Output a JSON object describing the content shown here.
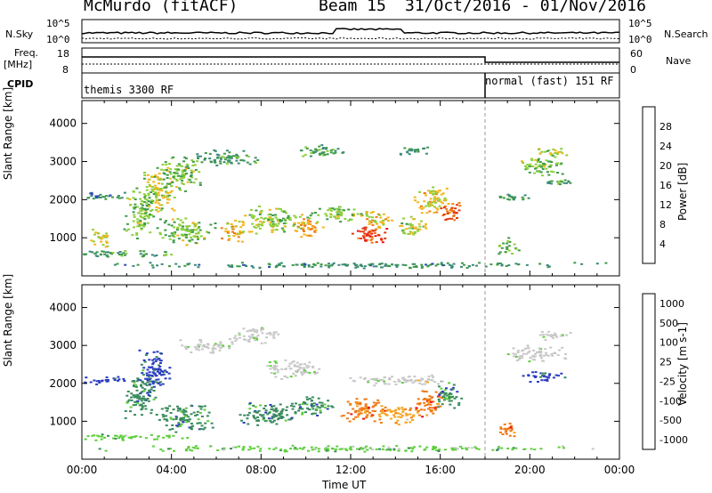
{
  "header": {
    "station": "McMurdo (fitACF)",
    "beam": "Beam 15",
    "date_range": "31/Oct/2016 - 01/Nov/2016"
  },
  "top_panels": {
    "nsky_label": "N.Sky",
    "nsearch_label": "N.Search",
    "ntick_top": "10^5",
    "ntick_bottom": "10^0",
    "freq_label": "Freq.",
    "freq_unit": "[MHz]",
    "freq_ticks": [
      "18",
      "8"
    ],
    "nave_label": "Nave",
    "nave_ticks": [
      "60",
      "0"
    ],
    "cpid_label": "CPID",
    "cpid_segments": [
      {
        "text": "themis 3300 RF",
        "start_hour": 0
      },
      {
        "text": "normal (fast) 151 RF",
        "start_hour": 18
      }
    ]
  },
  "colors": {
    "power": [
      "#1d1dff",
      "#2e4fb0",
      "#3c8a7a",
      "#3f9a4a",
      "#8ccf3a",
      "#f2b51c",
      "#f07a16",
      "#e33a10",
      "#ee1010"
    ],
    "velocity": [
      "#2a3cc0",
      "#3a8a5e",
      "#5ccf3a",
      "#c8c8c8",
      "#c8c8c8",
      "#f5a623",
      "#f07a16",
      "#ee1010"
    ]
  },
  "chart_data": [
    {
      "type": "heatmap",
      "name": "power",
      "ylabel": "Slant Range [km]",
      "yticks": [
        "1000",
        "2000",
        "3000",
        "4000"
      ],
      "ylim": [
        0,
        4600
      ],
      "xlim": [
        0,
        24
      ],
      "colorbar_label": "Power [dB]",
      "colorbar_ticks": [
        "4",
        "8",
        "12",
        "16",
        "20",
        "24",
        "28"
      ],
      "colorbar_range": [
        0,
        30
      ],
      "blobs": [
        {
          "t": 0.6,
          "r": 2100,
          "dt": 1.4,
          "dr": 120,
          "v": 7
        },
        {
          "t": 0.8,
          "r": 1000,
          "dt": 0.5,
          "dr": 300,
          "v": 14
        },
        {
          "t": 1.8,
          "r": 600,
          "dt": 3.0,
          "dr": 100,
          "v": 9
        },
        {
          "t": 2.6,
          "r": 1700,
          "dt": 0.8,
          "dr": 700,
          "v": 12
        },
        {
          "t": 3.4,
          "r": 2300,
          "dt": 0.8,
          "dr": 700,
          "v": 14
        },
        {
          "t": 4.4,
          "r": 2700,
          "dt": 1.0,
          "dr": 500,
          "v": 12
        },
        {
          "t": 4.6,
          "r": 1200,
          "dt": 1.4,
          "dr": 400,
          "v": 12
        },
        {
          "t": 6.8,
          "r": 1200,
          "dt": 0.8,
          "dr": 300,
          "v": 17
        },
        {
          "t": 6.4,
          "r": 3100,
          "dt": 1.6,
          "dr": 250,
          "v": 9
        },
        {
          "t": 8.6,
          "r": 1500,
          "dt": 1.4,
          "dr": 400,
          "v": 13
        },
        {
          "t": 10.0,
          "r": 1300,
          "dt": 0.8,
          "dr": 300,
          "v": 18
        },
        {
          "t": 10.6,
          "r": 3300,
          "dt": 1.2,
          "dr": 200,
          "v": 9
        },
        {
          "t": 11.4,
          "r": 1650,
          "dt": 1.4,
          "dr": 250,
          "v": 12
        },
        {
          "t": 12.9,
          "r": 1100,
          "dt": 0.9,
          "dr": 300,
          "v": 23
        },
        {
          "t": 13.2,
          "r": 1500,
          "dt": 0.8,
          "dr": 250,
          "v": 16
        },
        {
          "t": 14.6,
          "r": 1300,
          "dt": 0.8,
          "dr": 300,
          "v": 14
        },
        {
          "t": 15.6,
          "r": 2000,
          "dt": 1.0,
          "dr": 400,
          "v": 16
        },
        {
          "t": 16.4,
          "r": 1700,
          "dt": 0.6,
          "dr": 300,
          "v": 22
        },
        {
          "t": 14.8,
          "r": 3300,
          "dt": 0.8,
          "dr": 150,
          "v": 8
        },
        {
          "t": 19.2,
          "r": 2100,
          "dt": 1.0,
          "dr": 100,
          "v": 9
        },
        {
          "t": 20.6,
          "r": 2900,
          "dt": 1.2,
          "dr": 300,
          "v": 12
        },
        {
          "t": 20.9,
          "r": 3250,
          "dt": 0.8,
          "dr": 150,
          "v": 14
        },
        {
          "t": 21.3,
          "r": 2500,
          "dt": 1.0,
          "dr": 100,
          "v": 9
        },
        {
          "t": 19.0,
          "r": 800,
          "dt": 0.5,
          "dr": 250,
          "v": 12
        },
        {
          "t": 12.0,
          "r": 300,
          "dt": 12.0,
          "dr": 80,
          "v": 8
        }
      ]
    },
    {
      "type": "heatmap",
      "name": "velocity",
      "ylabel": "Slant Range [km]",
      "yticks": [
        "1000",
        "2000",
        "3000",
        "4000"
      ],
      "ylim": [
        0,
        4600
      ],
      "xlim": [
        0,
        24
      ],
      "xlabel": "Time UT",
      "xticks": [
        "00:00",
        "04:00",
        "08:00",
        "12:00",
        "16:00",
        "20:00",
        "00:00"
      ],
      "colorbar_label": "Velocity [m s-1]",
      "colorbar_ticks": [
        "1000",
        "500",
        "100",
        "25",
        "-25",
        "-100",
        "-500",
        "-1000"
      ],
      "blobs": [
        {
          "t": 0.6,
          "r": 2100,
          "dt": 1.4,
          "dr": 120,
          "v": 0
        },
        {
          "t": 1.8,
          "r": 600,
          "dt": 3.0,
          "dr": 100,
          "v": 2
        },
        {
          "t": 2.6,
          "r": 1700,
          "dt": 0.8,
          "dr": 700,
          "v": 1
        },
        {
          "t": 3.2,
          "r": 2400,
          "dt": 0.8,
          "dr": 600,
          "v": 0
        },
        {
          "t": 4.5,
          "r": 1100,
          "dt": 1.4,
          "dr": 400,
          "v": 1
        },
        {
          "t": 5.4,
          "r": 3000,
          "dt": 1.4,
          "dr": 200,
          "v": 3
        },
        {
          "t": 7.6,
          "r": 3300,
          "dt": 1.2,
          "dr": 250,
          "v": 3
        },
        {
          "t": 8.4,
          "r": 1200,
          "dt": 1.6,
          "dr": 350,
          "v": 1
        },
        {
          "t": 9.4,
          "r": 2400,
          "dt": 1.4,
          "dr": 300,
          "v": 3
        },
        {
          "t": 10.4,
          "r": 1400,
          "dt": 1.0,
          "dr": 300,
          "v": 1
        },
        {
          "t": 12.6,
          "r": 1300,
          "dt": 1.2,
          "dr": 350,
          "v": 6
        },
        {
          "t": 14.0,
          "r": 1200,
          "dt": 1.0,
          "dr": 300,
          "v": 5
        },
        {
          "t": 15.4,
          "r": 1500,
          "dt": 0.8,
          "dr": 400,
          "v": 6
        },
        {
          "t": 16.4,
          "r": 1700,
          "dt": 0.7,
          "dr": 400,
          "v": 1
        },
        {
          "t": 13.4,
          "r": 2100,
          "dt": 1.6,
          "dr": 150,
          "v": 3
        },
        {
          "t": 15.0,
          "r": 2100,
          "dt": 1.2,
          "dr": 150,
          "v": 4
        },
        {
          "t": 19.0,
          "r": 800,
          "dt": 0.5,
          "dr": 250,
          "v": 6
        },
        {
          "t": 20.2,
          "r": 2800,
          "dt": 1.4,
          "dr": 250,
          "v": 3
        },
        {
          "t": 21.0,
          "r": 3300,
          "dt": 0.8,
          "dr": 150,
          "v": 3
        },
        {
          "t": 20.6,
          "r": 2200,
          "dt": 1.2,
          "dr": 150,
          "v": 0
        },
        {
          "t": 12.0,
          "r": 300,
          "dt": 12.0,
          "dr": 80,
          "v": 2
        }
      ]
    }
  ]
}
